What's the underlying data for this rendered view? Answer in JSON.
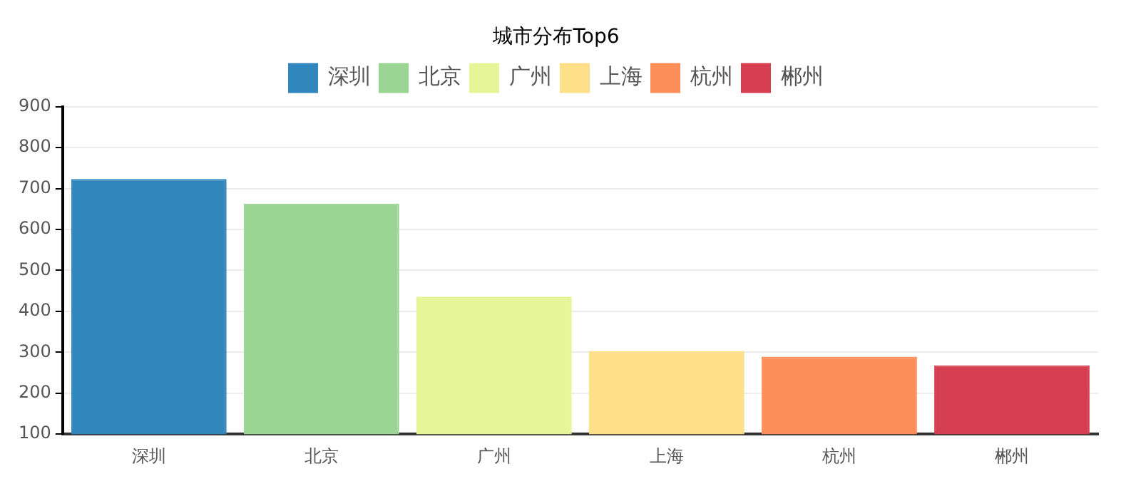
{
  "chart_data": {
    "type": "bar",
    "title": "城市分布Top6",
    "categories": [
      "深圳",
      "北京",
      "广州",
      "上海",
      "杭州",
      "郴州"
    ],
    "series": [
      {
        "name": "深圳",
        "color": "#3186bc",
        "values": [
          723,
          null,
          null,
          null,
          null,
          null
        ]
      },
      {
        "name": "北京",
        "color": "#9ad593",
        "values": [
          null,
          663,
          null,
          null,
          null,
          null
        ]
      },
      {
        "name": "广州",
        "color": "#e5f597",
        "values": [
          null,
          null,
          436,
          null,
          null,
          null
        ]
      },
      {
        "name": "上海",
        "color": "#fedf8a",
        "values": [
          null,
          null,
          null,
          303,
          null,
          null
        ]
      },
      {
        "name": "杭州",
        "color": "#fc8e59",
        "values": [
          null,
          null,
          null,
          null,
          289,
          null
        ]
      },
      {
        "name": "郴州",
        "color": "#d63f50",
        "values": [
          null,
          null,
          null,
          null,
          null,
          268
        ]
      }
    ],
    "ylim": [
      100,
      900
    ],
    "yticks": [
      100,
      200,
      300,
      400,
      500,
      600,
      700,
      800,
      900
    ],
    "grid": "y",
    "legend": "top"
  }
}
